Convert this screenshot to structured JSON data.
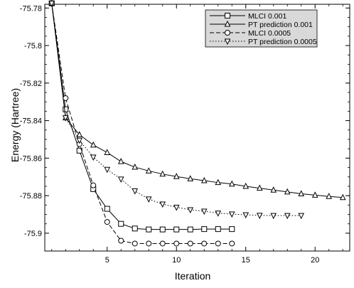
{
  "chart_data": {
    "type": "line",
    "title": "",
    "xlabel": "Iteration",
    "ylabel": "Energy (Hartree)",
    "xlim": [
      0.5,
      22.5
    ],
    "ylim": [
      -75.9095,
      -75.778
    ],
    "xticks": [
      5,
      10,
      15,
      20
    ],
    "xtick_labels": [
      "5",
      "10",
      "15",
      "20"
    ],
    "yticks": [
      -75.78,
      -75.8,
      -75.82,
      -75.84,
      -75.86,
      -75.88,
      -75.9
    ],
    "ytick_labels": [
      "-75.78",
      "-75.8",
      "-75.82",
      "-75.84",
      "-75.86",
      "-75.88",
      "-75.9"
    ],
    "grid": false,
    "legend_position": "top-right",
    "series": [
      {
        "name": "MLCI 0.001",
        "line_style": "solid",
        "marker": "square",
        "color": "#000000",
        "x": [
          1,
          2,
          3,
          4,
          5,
          6,
          7,
          8,
          9,
          10,
          11,
          12,
          13,
          14
        ],
        "y": [
          -75.7775,
          -75.834,
          -75.856,
          -75.8765,
          -75.887,
          -75.895,
          -75.8975,
          -75.898,
          -75.898,
          -75.898,
          -75.898,
          -75.8978,
          -75.8978,
          -75.8978
        ]
      },
      {
        "name": "PT prediction 0.001",
        "line_style": "solid",
        "marker": "triangle-up",
        "color": "#000000",
        "x": [
          1,
          2,
          3,
          4,
          5,
          6,
          7,
          8,
          9,
          10,
          11,
          12,
          13,
          14,
          15,
          16,
          17,
          18,
          19,
          20,
          21,
          22
        ],
        "y": [
          -75.7775,
          -75.8385,
          -75.8475,
          -75.853,
          -75.857,
          -75.8618,
          -75.8648,
          -75.8668,
          -75.8685,
          -75.8698,
          -75.871,
          -75.872,
          -75.873,
          -75.8738,
          -75.875,
          -75.876,
          -75.877,
          -75.878,
          -75.879,
          -75.8797,
          -75.8804,
          -75.881
        ]
      },
      {
        "name": "MLCI 0.0005",
        "line_style": "dashed",
        "marker": "circle",
        "color": "#000000",
        "x": [
          1,
          2,
          3,
          4,
          5,
          6,
          7,
          8,
          9,
          10,
          11,
          12,
          13,
          14
        ],
        "y": [
          -75.7775,
          -75.828,
          -75.8525,
          -75.8745,
          -75.894,
          -75.904,
          -75.9055,
          -75.9055,
          -75.9055,
          -75.9055,
          -75.9055,
          -75.9055,
          -75.9055,
          -75.9055
        ]
      },
      {
        "name": "PT prediction 0.0005",
        "line_style": "dotted",
        "marker": "triangle-down",
        "color": "#000000",
        "x": [
          1,
          2,
          3,
          4,
          5,
          6,
          7,
          8,
          9,
          10,
          11,
          12,
          13,
          14,
          15,
          16,
          17,
          18,
          19
        ],
        "y": [
          -75.7775,
          -75.8385,
          -75.8505,
          -75.8595,
          -75.866,
          -75.8712,
          -75.8775,
          -75.8818,
          -75.8845,
          -75.8862,
          -75.8875,
          -75.8883,
          -75.8893,
          -75.8898,
          -75.8902,
          -75.8905,
          -75.8906,
          -75.8906,
          -75.8906
        ]
      }
    ]
  }
}
